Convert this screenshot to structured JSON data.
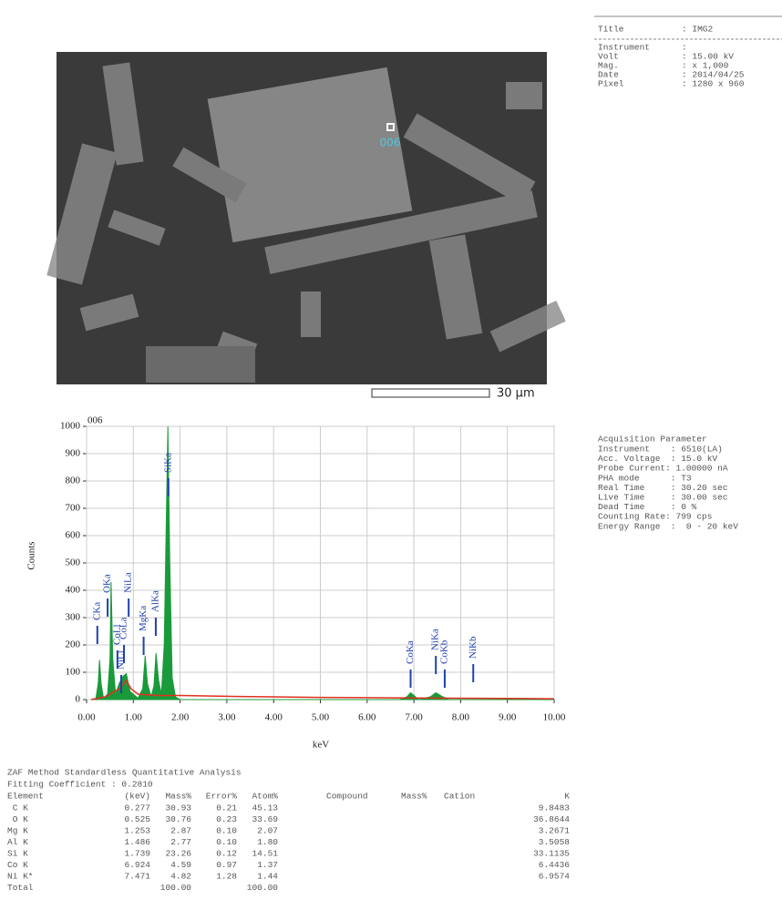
{
  "image": {
    "spot_label": "006",
    "scale_label": "30 µm"
  },
  "info": {
    "title_row": {
      "label": "Title",
      "value": ": IMG2"
    },
    "rows": [
      {
        "label": "Instrument",
        "value": ":"
      },
      {
        "label": "Volt",
        "value": ": 15.00 kV"
      },
      {
        "label": "Mag.",
        "value": ": x 1,000"
      },
      {
        "label": "Date",
        "value": ": 2014/04/25"
      },
      {
        "label": "Pixel",
        "value": ": 1280 x 960"
      }
    ]
  },
  "acquisition": {
    "title": "Acquisition Parameter",
    "lines": [
      "Instrument    : 6510(LA)",
      "Acc. Voltage  : 15.0 kV",
      "Probe Current: 1.00000 nA",
      "PHA mode      : T3",
      "Real Time     : 30.20 sec",
      "Live Time     : 30.00 sec",
      "Dead Time     : 0 %",
      "Counting Rate: 799 cps",
      "Energy Range  :  0 - 20 keV"
    ]
  },
  "chart_data": {
    "type": "area",
    "title": "006",
    "xlabel": "keV",
    "ylabel": "Counts",
    "xlim": [
      0,
      10
    ],
    "ylim": [
      0,
      1000
    ],
    "grid": true,
    "xticks": [
      {
        "value": 0,
        "label": "0.00"
      },
      {
        "value": 1,
        "label": "1.00"
      },
      {
        "value": 2,
        "label": "2.00"
      },
      {
        "value": 3,
        "label": "3.00"
      },
      {
        "value": 4,
        "label": "4.00"
      },
      {
        "value": 5,
        "label": "5.00"
      },
      {
        "value": 6,
        "label": "6.00"
      },
      {
        "value": 7,
        "label": "7.00"
      },
      {
        "value": 8,
        "label": "8.00"
      },
      {
        "value": 9,
        "label": "9.00"
      },
      {
        "value": 10,
        "label": "10.00"
      }
    ],
    "yticks": [
      0,
      100,
      200,
      300,
      400,
      500,
      600,
      700,
      800,
      900,
      1000
    ],
    "series": [
      {
        "name": "Spectrum",
        "color": "#1a9a3a",
        "fill": true,
        "x": [
          0.1,
          0.2,
          0.25,
          0.277,
          0.31,
          0.36,
          0.45,
          0.5,
          0.525,
          0.56,
          0.62,
          0.7,
          0.78,
          0.85,
          0.93,
          1.1,
          1.2,
          1.253,
          1.3,
          1.38,
          1.44,
          1.486,
          1.54,
          1.6,
          1.66,
          1.7,
          1.739,
          1.78,
          1.83,
          1.9,
          2.0,
          6.7,
          6.85,
          6.93,
          7.0,
          7.1,
          7.35,
          7.47,
          7.6,
          7.75,
          10.0
        ],
        "values": [
          0,
          5,
          60,
          145,
          60,
          5,
          20,
          150,
          430,
          150,
          20,
          60,
          85,
          95,
          30,
          5,
          40,
          160,
          60,
          10,
          50,
          170,
          70,
          20,
          200,
          600,
          1000,
          500,
          80,
          10,
          0,
          0,
          10,
          25,
          15,
          0,
          10,
          25,
          12,
          0,
          0
        ]
      },
      {
        "name": "Background",
        "color": "#e03020",
        "fill": false,
        "x": [
          0.1,
          0.4,
          0.7,
          0.8,
          0.85,
          0.95,
          1.1,
          1.5,
          2.0,
          3.0,
          4.0,
          5.0,
          6.0,
          7.0,
          8.0,
          9.0,
          10.0
        ],
        "values": [
          0,
          10,
          40,
          60,
          70,
          40,
          20,
          15,
          15,
          12,
          10,
          8,
          7,
          6,
          5,
          4,
          3
        ]
      }
    ],
    "annotations": [
      {
        "text": "CKa",
        "x": 0.23,
        "y": 290
      },
      {
        "text": "CoLl",
        "x": 0.66,
        "y": 200
      },
      {
        "text": "OKa",
        "x": 0.45,
        "y": 390
      },
      {
        "text": "CoLa",
        "x": 0.8,
        "y": 220
      },
      {
        "text": "NiLl",
        "x": 0.74,
        "y": 110
      },
      {
        "text": "NiLa",
        "x": 0.9,
        "y": 390
      },
      {
        "text": "MgKa",
        "x": 1.22,
        "y": 250
      },
      {
        "text": "AlKa",
        "x": 1.48,
        "y": 320
      },
      {
        "text": "SiKa",
        "x": 1.75,
        "y": 830
      },
      {
        "text": "CoKa",
        "x": 6.93,
        "y": 130
      },
      {
        "text": "NiKa",
        "x": 7.47,
        "y": 180
      },
      {
        "text": "CoKb",
        "x": 7.66,
        "y": 130
      },
      {
        "text": "NiKb",
        "x": 8.27,
        "y": 150
      }
    ]
  },
  "table": {
    "title": "ZAF Method Standardless Quantitative Analysis",
    "fitting": "Fitting Coefficient : 0.2810",
    "headers": [
      "Element",
      "(keV)",
      "Mass%",
      "Error%",
      "Atom%",
      "Compound",
      "Mass%",
      "Cation",
      "K"
    ],
    "rows": [
      [
        " C K",
        "0.277",
        "30.93",
        "0.21",
        "45.13",
        "9.8483"
      ],
      [
        " O K",
        "0.525",
        "30.76",
        "0.23",
        "33.69",
        "36.8644"
      ],
      [
        "Mg K",
        "1.253",
        "2.87",
        "0.10",
        "2.07",
        "3.2671"
      ],
      [
        "Al K",
        "1.486",
        "2.77",
        "0.10",
        "1.80",
        "3.5058"
      ],
      [
        "Si K",
        "1.739",
        "23.26",
        "0.12",
        "14.51",
        "33.1135"
      ],
      [
        "Co K",
        "6.924",
        "4.59",
        "0.97",
        "1.37",
        "6.4436"
      ],
      [
        "Ni K*",
        "7.471",
        "4.82",
        "1.28",
        "1.44",
        "6.9574"
      ]
    ],
    "total": {
      "label": "Total",
      "mass": "100.00",
      "atom": "100.00"
    }
  }
}
